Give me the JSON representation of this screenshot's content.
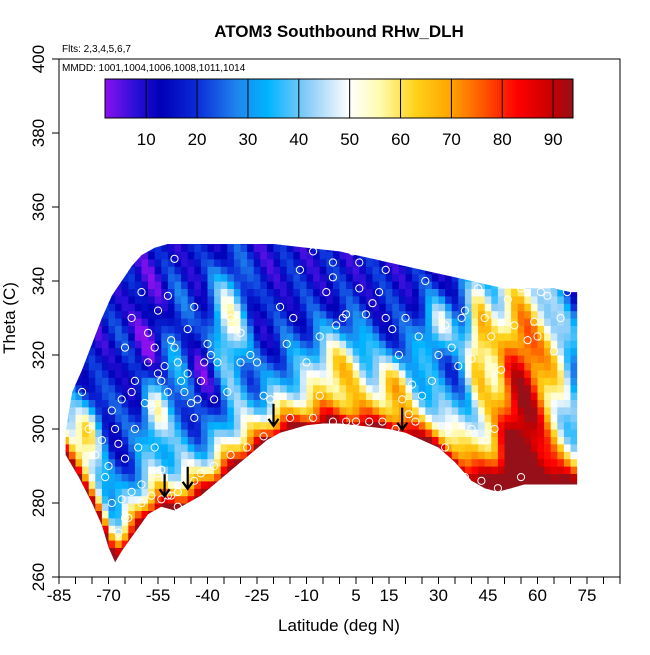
{
  "chart_data": {
    "type": "heatmap",
    "title": "ATOM3 Southbound RHw_DLH",
    "subtitle_lines": [
      "Flts: 2,3,4,5,6,7",
      "MMDD: 1001,1004,1006,1008,1011,1014"
    ],
    "xlabel": "Latitude (deg N)",
    "ylabel": "Theta (C)",
    "xlim": [
      -85,
      85
    ],
    "ylim": [
      260,
      400
    ],
    "x_ticks": [
      -85,
      -70,
      -55,
      -40,
      -25,
      -10,
      5,
      15,
      30,
      45,
      60,
      75
    ],
    "x_minor_step": 5,
    "y_ticks": [
      260,
      280,
      300,
      320,
      340,
      360,
      380,
      400
    ],
    "colorbar": {
      "min": 2,
      "max": 94,
      "ticks": [
        10,
        20,
        30,
        40,
        50,
        60,
        70,
        80,
        90
      ],
      "stops": [
        {
          "v": 2,
          "c": "#8a10f0"
        },
        {
          "v": 8,
          "c": "#2a0fd8"
        },
        {
          "v": 13,
          "c": "#0000b8"
        },
        {
          "v": 20,
          "c": "#0a2ad8"
        },
        {
          "v": 28,
          "c": "#1f86ee"
        },
        {
          "v": 34,
          "c": "#00b4ff"
        },
        {
          "v": 42,
          "c": "#8ccdf8"
        },
        {
          "v": 50,
          "c": "#ffffff"
        },
        {
          "v": 56,
          "c": "#fffbb0"
        },
        {
          "v": 63,
          "c": "#ffd21a"
        },
        {
          "v": 70,
          "c": "#ffa300"
        },
        {
          "v": 76,
          "c": "#ff5a00"
        },
        {
          "v": 83,
          "c": "#ff0000"
        },
        {
          "v": 90,
          "c": "#c50000"
        },
        {
          "v": 94,
          "c": "#96101a"
        }
      ]
    },
    "coverage": {
      "bottom": [
        [
          -83,
          293
        ],
        [
          -79,
          287
        ],
        [
          -75,
          280
        ],
        [
          -72,
          274
        ],
        [
          -70,
          268
        ],
        [
          -68,
          264
        ],
        [
          -66,
          267
        ],
        [
          -62,
          272
        ],
        [
          -58,
          277
        ],
        [
          -54,
          279
        ],
        [
          -50,
          278
        ],
        [
          -46,
          280
        ],
        [
          -42,
          282
        ],
        [
          -38,
          285
        ],
        [
          -34,
          288
        ],
        [
          -30,
          291
        ],
        [
          -26,
          294
        ],
        [
          -22,
          297
        ],
        [
          -18,
          299
        ],
        [
          -14,
          300
        ],
        [
          -10,
          301
        ],
        [
          -5,
          301.5
        ],
        [
          0,
          301.5
        ],
        [
          5,
          301
        ],
        [
          10,
          300.5
        ],
        [
          15,
          300
        ],
        [
          20,
          299
        ],
        [
          25,
          297
        ],
        [
          30,
          295
        ],
        [
          35,
          291
        ],
        [
          40,
          286
        ],
        [
          44,
          284
        ],
        [
          48,
          283
        ],
        [
          52,
          284
        ],
        [
          56,
          285
        ],
        [
          60,
          285
        ],
        [
          64,
          285
        ],
        [
          68,
          285
        ],
        [
          72,
          285
        ]
      ],
      "top": [
        [
          -83,
          299
        ],
        [
          -81,
          310
        ],
        [
          -78,
          316
        ],
        [
          -75,
          323
        ],
        [
          -72,
          330
        ],
        [
          -69,
          336
        ],
        [
          -66,
          340
        ],
        [
          -63,
          344
        ],
        [
          -60,
          347
        ],
        [
          -56,
          349
        ],
        [
          -52,
          350
        ],
        [
          -20,
          350
        ],
        [
          -10,
          349
        ],
        [
          0,
          348
        ],
        [
          5,
          347
        ],
        [
          10,
          346
        ],
        [
          15,
          345
        ],
        [
          20,
          344
        ],
        [
          25,
          343
        ],
        [
          30,
          342
        ],
        [
          35,
          341
        ],
        [
          40,
          340
        ],
        [
          45,
          339
        ],
        [
          50,
          338
        ],
        [
          55,
          338
        ],
        [
          60,
          338
        ],
        [
          65,
          338
        ],
        [
          70,
          337
        ],
        [
          72,
          337
        ]
      ]
    },
    "arrows": [
      [
        -53,
        284
      ],
      [
        -46,
        286
      ],
      [
        -20,
        303
      ],
      [
        19,
        302
      ]
    ],
    "points": [
      [
        -78,
        310
      ],
      [
        -76,
        300
      ],
      [
        -74,
        293
      ],
      [
        -72,
        297
      ],
      [
        -70,
        290
      ],
      [
        -69,
        305
      ],
      [
        -68,
        300
      ],
      [
        -67,
        296
      ],
      [
        -66,
        308
      ],
      [
        -65,
        292
      ],
      [
        -63,
        310
      ],
      [
        -62,
        300
      ],
      [
        -61,
        295
      ],
      [
        -60,
        285
      ],
      [
        -58,
        318
      ],
      [
        -57,
        306
      ],
      [
        -56,
        295
      ],
      [
        -55,
        288
      ],
      [
        -54,
        281
      ],
      [
        -53,
        274
      ],
      [
        -65,
        276
      ],
      [
        -67,
        272
      ],
      [
        -69,
        280
      ],
      [
        -71,
        287
      ],
      [
        -64,
        276
      ],
      [
        -60,
        280
      ],
      [
        -52,
        282
      ],
      [
        -49,
        283
      ],
      [
        -47,
        278
      ],
      [
        -58,
        326
      ],
      [
        -56,
        322
      ],
      [
        -55,
        315
      ],
      [
        -54,
        313
      ],
      [
        -53,
        317
      ],
      [
        -52,
        310
      ],
      [
        -51,
        324
      ],
      [
        -50,
        322
      ],
      [
        -49,
        318
      ],
      [
        -48,
        313
      ],
      [
        -47,
        310
      ],
      [
        -46,
        315
      ],
      [
        -45,
        307
      ],
      [
        -44,
        303
      ],
      [
        -43,
        308
      ],
      [
        -42,
        313
      ],
      [
        -41,
        318
      ],
      [
        -40,
        323
      ],
      [
        -39,
        320
      ],
      [
        -38,
        308
      ],
      [
        -60,
        337
      ],
      [
        -63,
        330
      ],
      [
        -65,
        322
      ],
      [
        -62,
        313
      ],
      [
        -59,
        307
      ],
      [
        -55,
        332
      ],
      [
        -52,
        336
      ],
      [
        -50,
        346
      ],
      [
        -46,
        327
      ],
      [
        -44,
        333
      ],
      [
        -37,
        318
      ],
      [
        -34,
        310
      ],
      [
        -33,
        330
      ],
      [
        -30,
        326
      ],
      [
        -27,
        320
      ],
      [
        -25,
        318
      ],
      [
        -23,
        309
      ],
      [
        -21,
        308
      ],
      [
        -18,
        333
      ],
      [
        -16,
        323
      ],
      [
        -14,
        330
      ],
      [
        -12,
        343
      ],
      [
        -10,
        318
      ],
      [
        -8,
        348
      ],
      [
        -6,
        325
      ],
      [
        -4,
        337
      ],
      [
        -2,
        341
      ],
      [
        -1,
        328
      ],
      [
        1,
        330
      ],
      [
        2,
        331
      ],
      [
        4,
        348
      ],
      [
        6,
        345
      ],
      [
        8,
        331
      ],
      [
        10,
        334
      ],
      [
        12,
        337
      ],
      [
        14,
        343
      ],
      [
        16,
        327
      ],
      [
        18,
        320
      ],
      [
        19,
        308
      ],
      [
        20,
        330
      ],
      [
        22,
        312
      ],
      [
        24,
        325
      ],
      [
        26,
        340
      ],
      [
        28,
        313
      ],
      [
        30,
        320
      ],
      [
        32,
        328
      ],
      [
        34,
        322
      ],
      [
        36,
        317
      ],
      [
        38,
        332
      ],
      [
        40,
        319
      ],
      [
        42,
        338
      ],
      [
        44,
        330
      ],
      [
        46,
        325
      ],
      [
        47,
        300
      ],
      [
        49,
        316
      ],
      [
        51,
        335
      ],
      [
        53,
        328
      ],
      [
        55,
        338
      ],
      [
        57,
        324
      ],
      [
        59,
        329
      ],
      [
        61,
        337
      ],
      [
        63,
        336
      ],
      [
        65,
        321
      ],
      [
        67,
        330
      ],
      [
        69,
        337
      ],
      [
        25,
        309
      ],
      [
        23,
        302
      ],
      [
        21,
        304
      ],
      [
        17,
        300
      ],
      [
        13,
        302
      ],
      [
        9,
        302
      ],
      [
        5,
        302
      ],
      [
        2,
        302
      ],
      [
        -2,
        302
      ],
      [
        -8,
        303
      ],
      [
        -15,
        303
      ],
      [
        -23,
        298
      ],
      [
        -28,
        295
      ],
      [
        -33,
        293
      ],
      [
        -38,
        290
      ],
      [
        -42,
        288
      ],
      [
        -44,
        286
      ],
      [
        -49,
        279
      ],
      [
        -51,
        282
      ],
      [
        -54,
        289
      ],
      [
        -57,
        282
      ],
      [
        -63,
        283
      ],
      [
        -66,
        281
      ],
      [
        32,
        295
      ],
      [
        38,
        287
      ],
      [
        43,
        286
      ],
      [
        48,
        284
      ],
      [
        55,
        287
      ],
      [
        33,
        300
      ],
      [
        40,
        300
      ],
      [
        44,
        297
      ],
      [
        60,
        325
      ],
      [
        37,
        330
      ],
      [
        36,
        350
      ],
      [
        14,
        330
      ],
      [
        6,
        338
      ],
      [
        -2,
        345
      ],
      [
        -6,
        309
      ],
      [
        -30,
        318
      ]
    ]
  }
}
